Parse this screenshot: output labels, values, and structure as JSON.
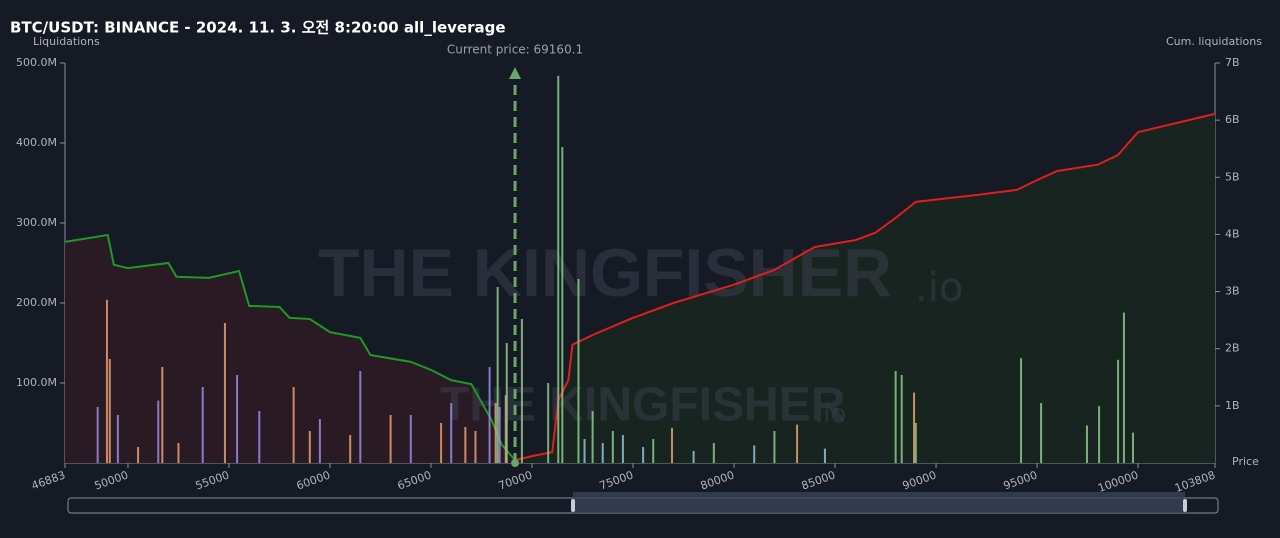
{
  "chart_data": {
    "type": "bar",
    "title": "BTC/USDT: BINANCE - 2024. 11. 3. 오전 8:20:00 all_leverage",
    "y_label": "Liquidations",
    "y2_label": "Cum. liquidations",
    "x_label": "Price",
    "watermark": "THE KINGFISHER",
    "watermark_suffix": ".io",
    "annotation": {
      "text": "Current price: 69160.1",
      "x": 69160.1,
      "color": "#6aa56a"
    },
    "xlim": [
      46883,
      103808
    ],
    "xticks": [
      46883,
      50000,
      55000,
      60000,
      65000,
      70000,
      75000,
      80000,
      85000,
      90000,
      95000,
      100000,
      103808
    ],
    "ylim": [
      0,
      500000000
    ],
    "yticks": [
      {
        "value": 100000000,
        "label": "100.0M"
      },
      {
        "value": 200000000,
        "label": "200.0M"
      },
      {
        "value": 300000000,
        "label": "300.0M"
      },
      {
        "value": 400000000,
        "label": "400.0M"
      },
      {
        "value": 500000000,
        "label": "500.0M"
      }
    ],
    "y2lim": [
      0,
      7000000000
    ],
    "y2ticks": [
      {
        "value": 1000000000,
        "label": "1B"
      },
      {
        "value": 2000000000,
        "label": "2B"
      },
      {
        "value": 3000000000,
        "label": "3B"
      },
      {
        "value": 4000000000,
        "label": "4B"
      },
      {
        "value": 5000000000,
        "label": "5B"
      },
      {
        "value": 6000000000,
        "label": "6B"
      },
      {
        "value": 7000000000,
        "label": "7B"
      }
    ],
    "series": [
      {
        "type": "line",
        "axis": "y2",
        "color": "#1d9a24",
        "fill": "#2a1a24",
        "x": [
          46883,
          49000,
          49300,
          50000,
          52000,
          52400,
          54000,
          55500,
          56000,
          57500,
          58000,
          59000,
          60000,
          61500,
          62000,
          64000,
          65000,
          66000,
          67000,
          68000,
          68500,
          69160.1
        ],
        "values": [
          3870000000,
          3990000000,
          3470000000,
          3410000000,
          3500000000,
          3260000000,
          3240000000,
          3360000000,
          2750000000,
          2730000000,
          2540000000,
          2520000000,
          2290000000,
          2190000000,
          1890000000,
          1770000000,
          1630000000,
          1450000000,
          1380000000,
          750000000,
          320000000,
          50000000
        ]
      },
      {
        "type": "line",
        "axis": "y2",
        "color": "#e01e1e",
        "fill": "#17241f",
        "x": [
          69160.1,
          70000,
          71000,
          71300,
          71800,
          72000,
          73000,
          75000,
          77000,
          80000,
          82000,
          84000,
          86000,
          87000,
          88000,
          89000,
          92000,
          94000,
          95000,
          96000,
          98000,
          99000,
          100000,
          103808
        ],
        "values": [
          50000000,
          120000000,
          190000000,
          1100000000,
          1450000000,
          2070000000,
          2240000000,
          2540000000,
          2800000000,
          3120000000,
          3380000000,
          3780000000,
          3900000000,
          4030000000,
          4290000000,
          4570000000,
          4690000000,
          4780000000,
          4950000000,
          5110000000,
          5220000000,
          5390000000,
          5790000000,
          6110000000
        ]
      },
      {
        "type": "bar",
        "color": "#e8a06e",
        "x": [
          48960,
          49100,
          50500,
          51700,
          52500,
          54800,
          58200,
          59000,
          61000,
          63000,
          65500,
          66700,
          67200,
          68200,
          68700,
          76930,
          83120,
          88910
        ],
        "values": [
          204000000,
          130000000,
          20000000,
          120000000,
          25000000,
          175000000,
          95000000,
          40000000,
          35000000,
          60000000,
          50000000,
          45000000,
          40000000,
          75000000,
          85000000,
          44000000,
          48000000,
          88000000
        ]
      },
      {
        "type": "bar",
        "color": "#9a8ce6",
        "x": [
          48500,
          49500,
          51500,
          53700,
          55400,
          56500,
          59500,
          61500,
          64000,
          66000,
          67900,
          68400
        ],
        "values": [
          70000000,
          60000000,
          78000000,
          95000000,
          110000000,
          65000000,
          55000000,
          115000000,
          60000000,
          75000000,
          120000000,
          70000000
        ]
      },
      {
        "type": "bar",
        "color": "#8cc98c",
        "x": [
          68300,
          68750,
          69500,
          70800,
          71300,
          71500,
          72300,
          73000,
          74000,
          76000,
          79000,
          82000,
          88000,
          88300,
          89000,
          94208,
          95200,
          97470,
          98070,
          99010,
          99300,
          99750
        ],
        "values": [
          220000000,
          150000000,
          180000000,
          100000000,
          484000000,
          395000000,
          230000000,
          65000000,
          40000000,
          30000000,
          25000000,
          40000000,
          115000000,
          110000000,
          50000000,
          131000000,
          75000000,
          47000000,
          71000000,
          129000000,
          188000000,
          38000000
        ]
      },
      {
        "type": "bar",
        "color": "#8fc4d8",
        "x": [
          72600,
          73500,
          74500,
          75500,
          78000,
          81000,
          84500
        ],
        "values": [
          30000000,
          25000000,
          35000000,
          20000000,
          15000000,
          22000000,
          18000000
        ]
      }
    ]
  }
}
